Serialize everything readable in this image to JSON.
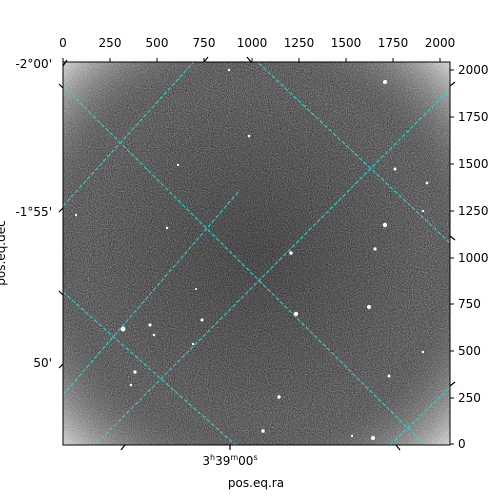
{
  "image": {
    "description_type": "astronomical-fits-image",
    "colormap": "greyscale-noise",
    "grid_color": "#33d6d6"
  },
  "axes": {
    "xlabel": "pos.eq.ra",
    "ylabel": "pos.eq.dec",
    "top_ticks": [
      "0",
      "250",
      "500",
      "750",
      "1000",
      "1250",
      "1500",
      "1750",
      "2000"
    ],
    "right_ticks": [
      "2000",
      "1750",
      "1500",
      "1250",
      "1000",
      "750",
      "500",
      "250",
      "0"
    ],
    "left_ticks": [
      "-2°00'",
      "-1°55'",
      "50'"
    ],
    "bottom_ra": {
      "h": "3",
      "m": "39",
      "s": "00"
    }
  }
}
